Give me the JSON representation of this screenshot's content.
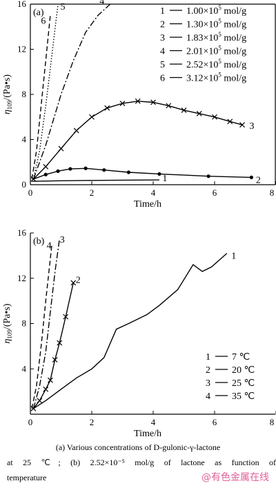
{
  "chart_data": [
    {
      "type": "line",
      "panel_label": "(a)",
      "xlabel": "Time/h",
      "ylabel_main": "η",
      "ylabel_sub": "109",
      "ylabel_unit": "/(Pa•s)",
      "xlim": [
        0,
        8
      ],
      "ylim": [
        0,
        16
      ],
      "xticks": [
        "0",
        "2",
        "4",
        "6",
        "8"
      ],
      "yticks": [
        "0",
        "4",
        "8",
        "12",
        "16"
      ],
      "legend": [
        {
          "num": "1",
          "label": "1.00×10",
          "exp": "5",
          "unit": " mol/g"
        },
        {
          "num": "2",
          "label": "1.30×10",
          "exp": "5",
          "unit": " mol/g"
        },
        {
          "num": "3",
          "label": "1.83×10",
          "exp": "5",
          "unit": " mol/g"
        },
        {
          "num": "4",
          "label": "2.01×10",
          "exp": "5",
          "unit": " mol/g"
        },
        {
          "num": "5",
          "label": "2.52×10",
          "exp": "5",
          "unit": " mol/g"
        },
        {
          "num": "6",
          "label": "3.12×10",
          "exp": "5",
          "unit": " mol/g"
        }
      ],
      "series": [
        {
          "id": "1",
          "style": "solid",
          "marker": "none",
          "x": [
            0.05,
            1,
            2,
            3,
            4.2
          ],
          "y": [
            0.3,
            0.35,
            0.38,
            0.4,
            0.42
          ]
        },
        {
          "id": "2",
          "style": "solid",
          "marker": "dot",
          "x": [
            0.1,
            0.5,
            0.9,
            1.3,
            1.8,
            2.4,
            3.2,
            4.2,
            5.8,
            7.2
          ],
          "y": [
            0.5,
            0.9,
            1.2,
            1.4,
            1.45,
            1.3,
            1.1,
            0.95,
            0.75,
            0.65
          ]
        },
        {
          "id": "3",
          "style": "solid",
          "marker": "cross",
          "x": [
            0.1,
            0.5,
            1,
            1.5,
            2,
            2.5,
            3,
            3.5,
            4,
            4.5,
            5,
            5.5,
            6,
            6.5,
            6.9
          ],
          "y": [
            0.5,
            1.6,
            3.2,
            4.8,
            6.0,
            6.8,
            7.2,
            7.4,
            7.3,
            7.0,
            6.6,
            6.3,
            6.0,
            5.6,
            5.3
          ]
        },
        {
          "id": "4",
          "style": "dashdot",
          "marker": "none",
          "x": [
            0.1,
            0.5,
            1,
            1.4,
            1.8,
            2.2,
            2.6
          ],
          "y": [
            0.5,
            3.5,
            8,
            11,
            13.5,
            15,
            16
          ]
        },
        {
          "id": "5",
          "style": "dotted",
          "marker": "none",
          "x": [
            0.1,
            0.3,
            0.5,
            0.7,
            0.9
          ],
          "y": [
            0.5,
            3,
            7,
            11.5,
            16
          ]
        },
        {
          "id": "6",
          "style": "dashed",
          "marker": "none",
          "x": [
            0.05,
            0.2,
            0.35,
            0.5,
            0.65
          ],
          "y": [
            0.5,
            3,
            7,
            11,
            15
          ]
        }
      ]
    },
    {
      "type": "line",
      "panel_label": "(b)",
      "xlabel": "Time/h",
      "ylabel_main": "η",
      "ylabel_sub": "109",
      "ylabel_unit": "/(Pa•s)",
      "xlim": [
        0,
        8
      ],
      "ylim": [
        0,
        16
      ],
      "xticks": [
        "0",
        "2",
        "4",
        "6",
        "8"
      ],
      "yticks": [
        "4",
        "8",
        "12",
        "16"
      ],
      "legend": [
        {
          "num": "1",
          "label": "7 ℃"
        },
        {
          "num": "2",
          "label": "20 ℃"
        },
        {
          "num": "3",
          "label": "25 ℃"
        },
        {
          "num": "4",
          "label": "35 ℃"
        }
      ],
      "series": [
        {
          "id": "1",
          "style": "solid",
          "marker": "none",
          "x": [
            0.1,
            0.5,
            1,
            1.5,
            2,
            2.4,
            2.8,
            3.2,
            3.8,
            4.2,
            4.8,
            5.3,
            5.6,
            5.9,
            6.4
          ],
          "y": [
            0.5,
            1.2,
            2.2,
            3.2,
            4.0,
            5.0,
            7.5,
            8.0,
            8.8,
            9.6,
            11.0,
            13.2,
            12.6,
            13.0,
            14.2
          ]
        },
        {
          "id": "2",
          "style": "solid",
          "marker": "cross",
          "x": [
            0.1,
            0.3,
            0.5,
            0.65,
            0.8,
            0.95,
            1.15,
            1.4
          ],
          "y": [
            0.5,
            1.2,
            2.2,
            3.0,
            4.8,
            6.3,
            8.6,
            11.6
          ]
        },
        {
          "id": "3",
          "style": "dashdot",
          "marker": "none",
          "x": [
            0.1,
            0.3,
            0.5,
            0.65,
            0.8,
            0.95
          ],
          "y": [
            0.5,
            2.5,
            5.5,
            9,
            12.5,
            15.5
          ]
        },
        {
          "id": "4",
          "style": "dashed",
          "marker": "none",
          "x": [
            0.05,
            0.2,
            0.35,
            0.5,
            0.7
          ],
          "y": [
            0.5,
            2.5,
            6,
            10,
            15
          ]
        }
      ]
    }
  ],
  "caption": {
    "line1": "(a) Various concentrations of D-gulonic-γ-lactone",
    "line2": "at 25 ℃; (b) 2.52×10⁻⁵ mol/g of lactone as function of",
    "line3": "temperature"
  },
  "watermark": "@有色金属在线"
}
